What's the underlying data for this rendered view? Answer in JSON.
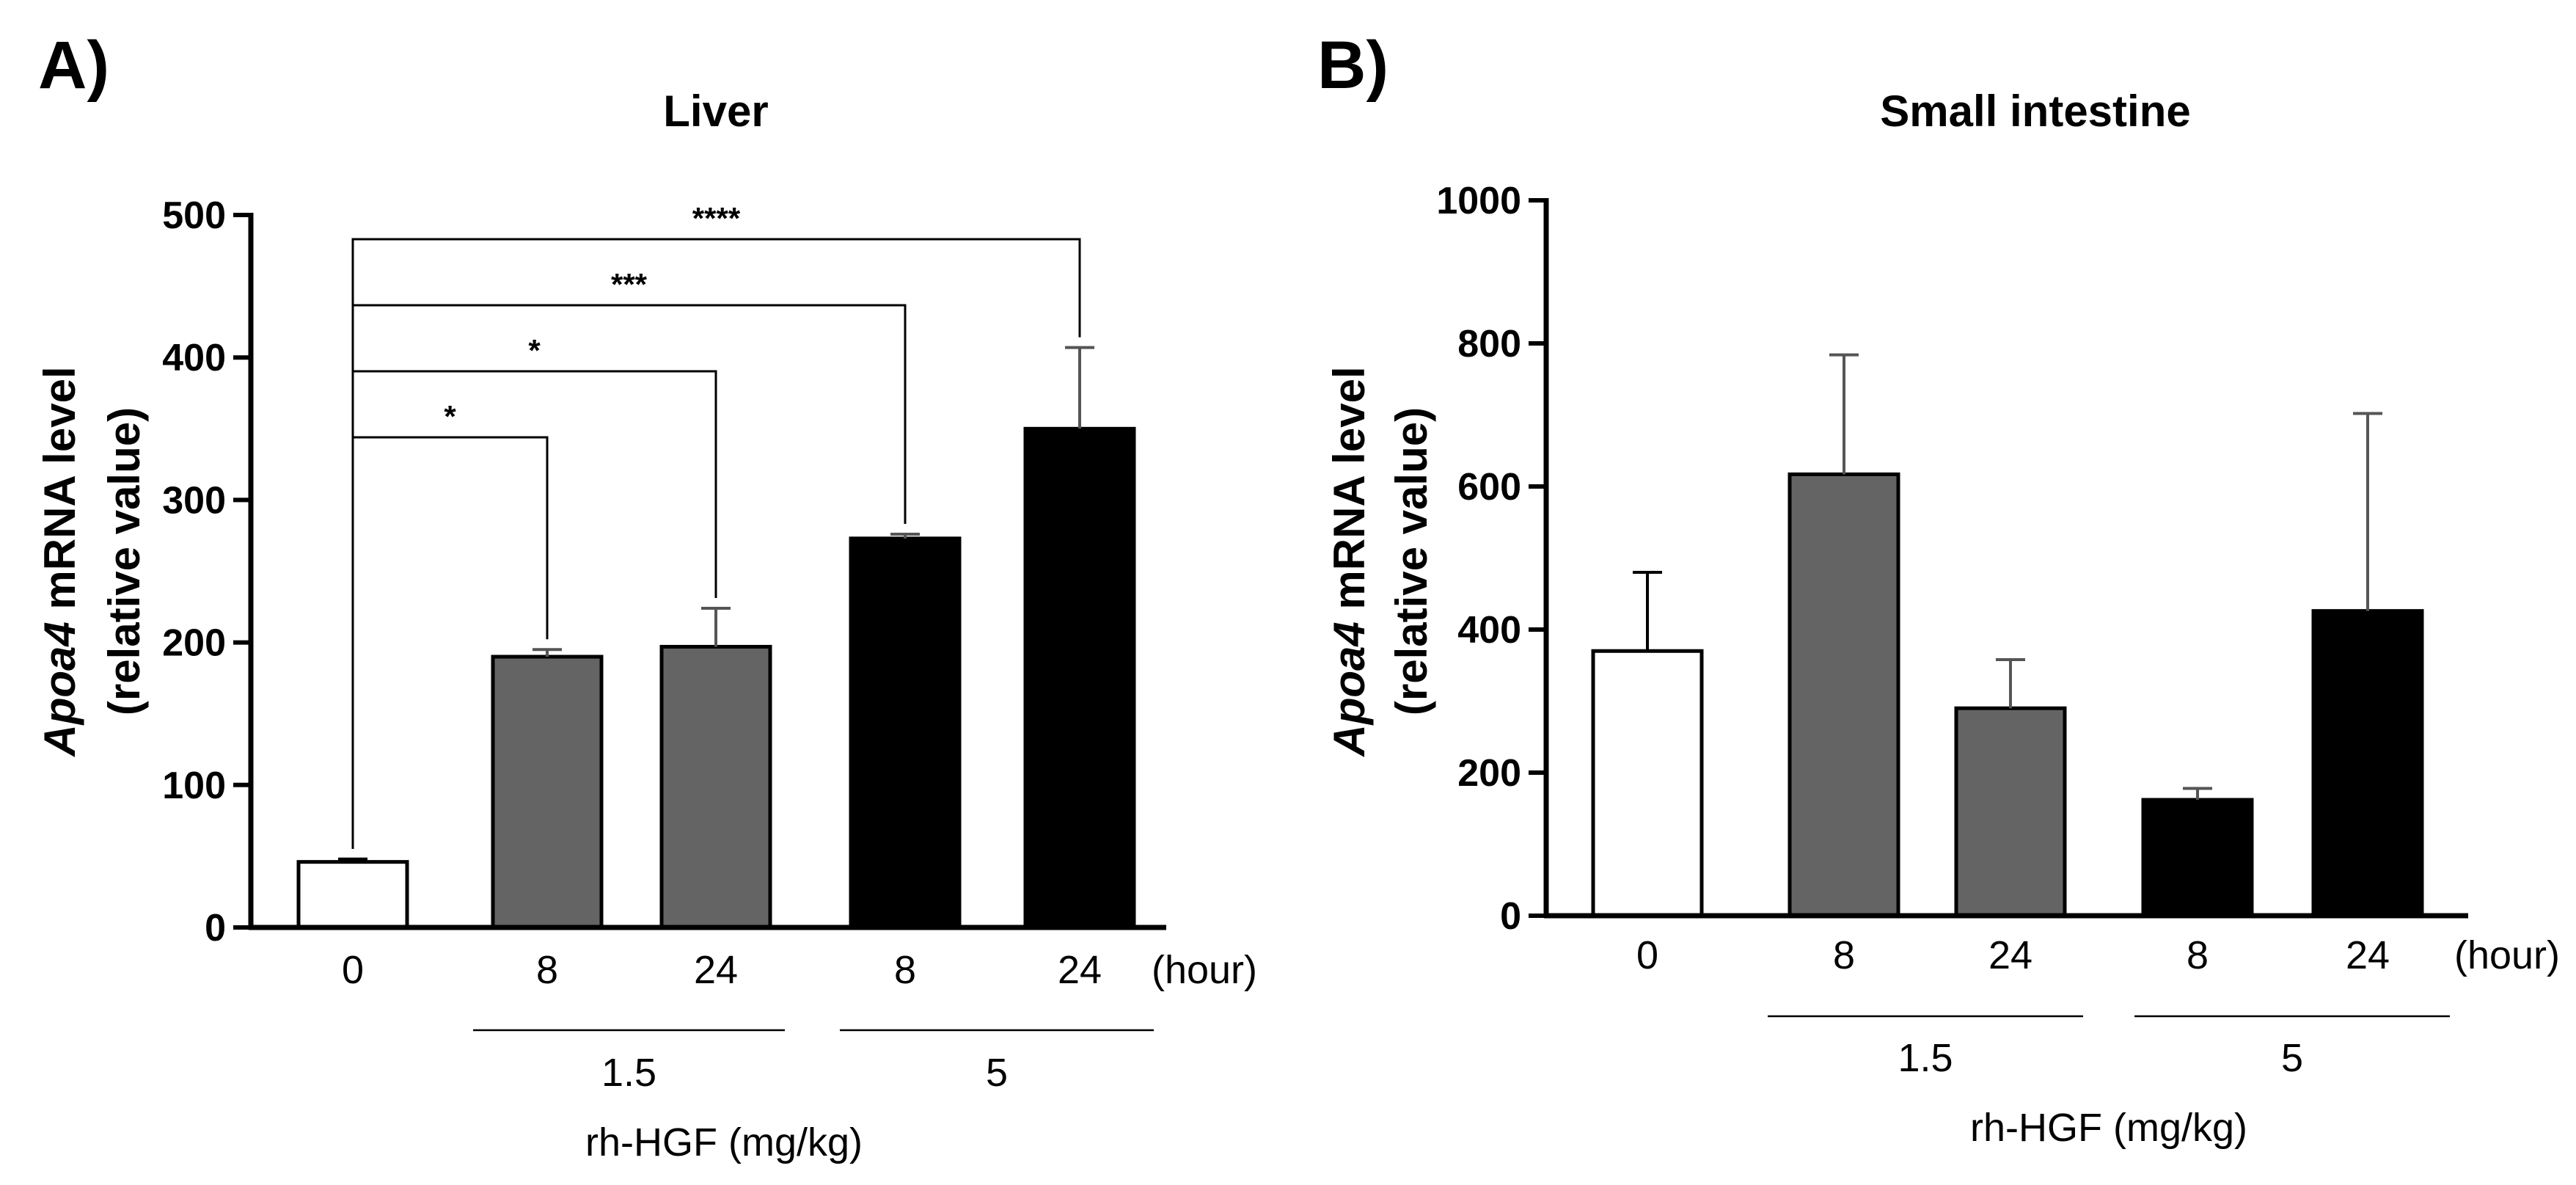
{
  "chart_data": [
    {
      "panel_label": "A)",
      "type": "bar",
      "title": "Liver",
      "ylabel_italic": "Apoa4",
      "ylabel_rest": " mRNA level",
      "ylabel_line2": "(relative value)",
      "ylim": [
        0,
        500
      ],
      "yticks": [
        0,
        100,
        200,
        300,
        400,
        500
      ],
      "categories": [
        "0",
        "8",
        "24",
        "8",
        "24"
      ],
      "x_unit": "(hour)",
      "groups": [
        {
          "label": "1.5",
          "from": 1,
          "to": 2
        },
        {
          "label": "5",
          "from": 3,
          "to": 4
        }
      ],
      "xlabel": "rh-HGF (mg/kg)",
      "values": [
        46,
        190,
        197,
        273,
        350
      ],
      "errors": [
        2,
        5,
        27,
        3,
        57
      ],
      "colors": [
        "#ffffff",
        "#646464",
        "#646464",
        "#000000",
        "#000000"
      ],
      "significance": [
        {
          "from": 0,
          "to": 1,
          "label": "*"
        },
        {
          "from": 0,
          "to": 2,
          "label": "*"
        },
        {
          "from": 0,
          "to": 3,
          "label": "***"
        },
        {
          "from": 0,
          "to": 4,
          "label": "****"
        }
      ]
    },
    {
      "panel_label": "B)",
      "type": "bar",
      "title": "Small intestine",
      "ylabel_italic": "Apoa4",
      "ylabel_rest": " mRNA level",
      "ylabel_line2": "(relative value)",
      "ylim": [
        0,
        1000
      ],
      "yticks": [
        0,
        200,
        400,
        600,
        800,
        1000
      ],
      "categories": [
        "0",
        "8",
        "24",
        "8",
        "24"
      ],
      "x_unit": "(hour)",
      "groups": [
        {
          "label": "1.5",
          "from": 1,
          "to": 2
        },
        {
          "label": "5",
          "from": 3,
          "to": 4
        }
      ],
      "xlabel": "rh-HGF (mg/kg)",
      "values": [
        370,
        617,
        290,
        162,
        426
      ],
      "errors": [
        110,
        167,
        68,
        16,
        276
      ],
      "colors": [
        "#ffffff",
        "#646464",
        "#646464",
        "#000000",
        "#000000"
      ],
      "significance": []
    }
  ]
}
